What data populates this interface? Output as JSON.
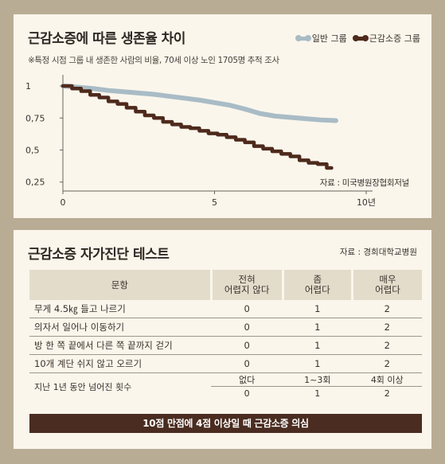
{
  "panel1": {
    "title": "근감소증에 따른 생존율 차이",
    "subtitle": "※특정 시점 그룹 내 생존한 사람의 비율, 70세 이상 노인 1705명 추적 조사",
    "source": "자료 : 미국병원장협회저널"
  },
  "chart_data": {
    "type": "line",
    "title": "근감소증에 따른 생존율 차이",
    "xlim": [
      0,
      10
    ],
    "ylim": [
      0.18,
      1.05
    ],
    "x_ticks": [
      0,
      5,
      10
    ],
    "x_tick_labels": [
      "0",
      "5",
      "10년"
    ],
    "y_ticks": [
      1,
      0.75,
      0.5,
      0.25
    ],
    "y_tick_labels": [
      "1",
      "0,75",
      "0,5",
      "0,25"
    ],
    "legend_position": "top-right",
    "series": [
      {
        "name": "일반 그룹",
        "color": "#a9bcc6",
        "x": [
          0,
          0.5,
          1,
          1.5,
          2,
          2.5,
          3,
          3.5,
          4,
          4.5,
          5,
          5.5,
          6,
          6.5,
          7,
          7.5,
          8,
          8.5,
          9
        ],
        "y": [
          1.0,
          0.99,
          0.98,
          0.965,
          0.955,
          0.945,
          0.935,
          0.92,
          0.905,
          0.89,
          0.87,
          0.85,
          0.82,
          0.785,
          0.765,
          0.755,
          0.745,
          0.735,
          0.73
        ]
      },
      {
        "name": "근감소증 그룹",
        "color": "#4e2a1c",
        "step": true,
        "x": [
          0,
          0.3,
          0.6,
          0.9,
          1.2,
          1.5,
          1.8,
          2.1,
          2.4,
          2.7,
          3.0,
          3.3,
          3.6,
          3.9,
          4.2,
          4.5,
          4.8,
          5.1,
          5.4,
          5.7,
          6.0,
          6.3,
          6.6,
          6.9,
          7.2,
          7.5,
          7.8,
          8.1,
          8.4,
          8.7
        ],
        "y": [
          1.0,
          0.98,
          0.96,
          0.93,
          0.91,
          0.88,
          0.86,
          0.83,
          0.8,
          0.77,
          0.75,
          0.72,
          0.7,
          0.68,
          0.67,
          0.65,
          0.63,
          0.62,
          0.6,
          0.58,
          0.56,
          0.53,
          0.51,
          0.49,
          0.47,
          0.45,
          0.42,
          0.4,
          0.39,
          0.36
        ]
      }
    ]
  },
  "panel2": {
    "title": "근감소증 자가진단 테스트",
    "source": "자료 : 경희대학교병원",
    "headers": [
      "문항",
      "전혀\n어렵지 않다",
      "좀\n어렵다",
      "매우\n어렵다"
    ],
    "rows": [
      [
        "무게 4.5㎏ 들고 나르기",
        "0",
        "1",
        "2"
      ],
      [
        "의자서 일어나 이동하기",
        "0",
        "1",
        "2"
      ],
      [
        "방 한 쪽 끝에서 다른 쪽 끝까지 걷기",
        "0",
        "1",
        "2"
      ],
      [
        "10개 계단 쉬지 않고 오르기",
        "0",
        "1",
        "2"
      ]
    ],
    "fall_question": "지난 1년 동안 넘어진 횟수",
    "fall_options": [
      "없다",
      "1~3회",
      "4회 이상"
    ],
    "fall_scores": [
      "0",
      "1",
      "2"
    ],
    "banner": "10점 만점에 4점 이상일 때 근감소증 의심"
  }
}
